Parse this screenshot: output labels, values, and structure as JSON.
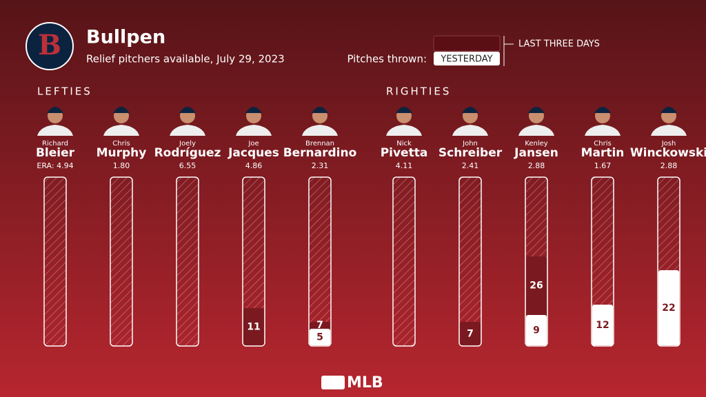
{
  "header": {
    "logo": "B",
    "title": "Bullpen",
    "subtitle": "Relief pitchers available, July 29, 2023"
  },
  "legend": {
    "label": "Pitches thrown:",
    "last_three_days": "LAST THREE DAYS",
    "yesterday": "YESTERDAY"
  },
  "groups": [
    {
      "name": "LEFTIES",
      "pitchers": [
        {
          "first": "Richard",
          "last": "Bleier",
          "era": "ERA: 4.94",
          "last_three_days": null,
          "yesterday": null
        },
        {
          "first": "Chris",
          "last": "Murphy",
          "era": "1.80",
          "last_three_days": null,
          "yesterday": null
        },
        {
          "first": "Joely",
          "last": "Rodríguez",
          "era": "6.55",
          "last_three_days": null,
          "yesterday": null
        },
        {
          "first": "Joe",
          "last": "Jacques",
          "era": "4.86",
          "last_three_days": 11,
          "yesterday": null
        },
        {
          "first": "Brennan",
          "last": "Bernardino",
          "era": "2.31",
          "last_three_days": 7,
          "yesterday": 5
        }
      ]
    },
    {
      "name": "RIGHTIES",
      "pitchers": [
        {
          "first": "Nick",
          "last": "Pivetta",
          "era": "4.11",
          "last_three_days": null,
          "yesterday": null
        },
        {
          "first": "John",
          "last": "Schreiber",
          "era": "2.41",
          "last_three_days": 7,
          "yesterday": null
        },
        {
          "first": "Kenley",
          "last": "Jansen",
          "era": "2.88",
          "last_three_days": 26,
          "yesterday": 9
        },
        {
          "first": "Chris",
          "last": "Martin",
          "era": "1.67",
          "last_three_days": null,
          "yesterday": 12
        },
        {
          "first": "Josh",
          "last": "Winckowski",
          "era": "2.88",
          "last_three_days": null,
          "yesterday": 22
        }
      ]
    }
  ],
  "footer": "MLB"
}
